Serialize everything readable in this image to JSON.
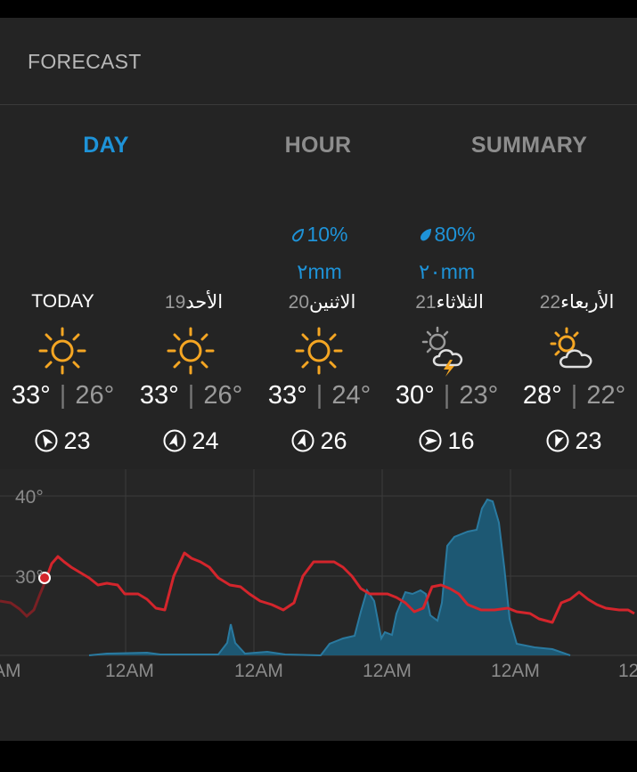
{
  "header": {
    "title": "FORECAST"
  },
  "tabs": [
    {
      "label": "DAY",
      "active": true
    },
    {
      "label": "HOUR",
      "active": false
    },
    {
      "label": "SUMMARY",
      "active": false
    }
  ],
  "days": [
    {
      "name": "TODAY",
      "num": "",
      "precip_pct": "",
      "precip_mm": "",
      "icon": "sun-icon",
      "hi": "33°",
      "lo": "26°",
      "wind": "23",
      "wind_dir": "north-west"
    },
    {
      "name": "الأحد",
      "num": "19",
      "precip_pct": "",
      "precip_mm": "",
      "icon": "sun-icon",
      "hi": "33°",
      "lo": "26°",
      "wind": "24",
      "wind_dir": "north-east"
    },
    {
      "name": "الاثنين",
      "num": "20",
      "precip_pct": "10%",
      "precip_mm": "٢mm",
      "icon": "sun-icon",
      "hi": "33°",
      "lo": "24°",
      "wind": "26",
      "wind_dir": "north-east"
    },
    {
      "name": "الثلاثاء",
      "num": "21",
      "precip_pct": "80%",
      "precip_mm": "٢٠mm",
      "icon": "thunderstorm-icon",
      "hi": "30°",
      "lo": "23°",
      "wind": "16",
      "wind_dir": "east"
    },
    {
      "name": "الأربعاء",
      "num": "22",
      "precip_pct": "",
      "precip_mm": "",
      "icon": "partly-cloudy-icon",
      "hi": "28°",
      "lo": "22°",
      "wind": "23",
      "wind_dir": "south"
    }
  ],
  "chart": {
    "y_labels": [
      "40°",
      "30°"
    ],
    "x_labels": [
      "AM",
      "12AM",
      "12AM",
      "12AM",
      "12AM",
      "12"
    ],
    "temp_color": "#d4252c",
    "precip_color": "#1d5873",
    "precip_line_color": "#2a7aa0"
  },
  "colors": {
    "accent": "#1e93d8",
    "sun": "#f5a623"
  }
}
